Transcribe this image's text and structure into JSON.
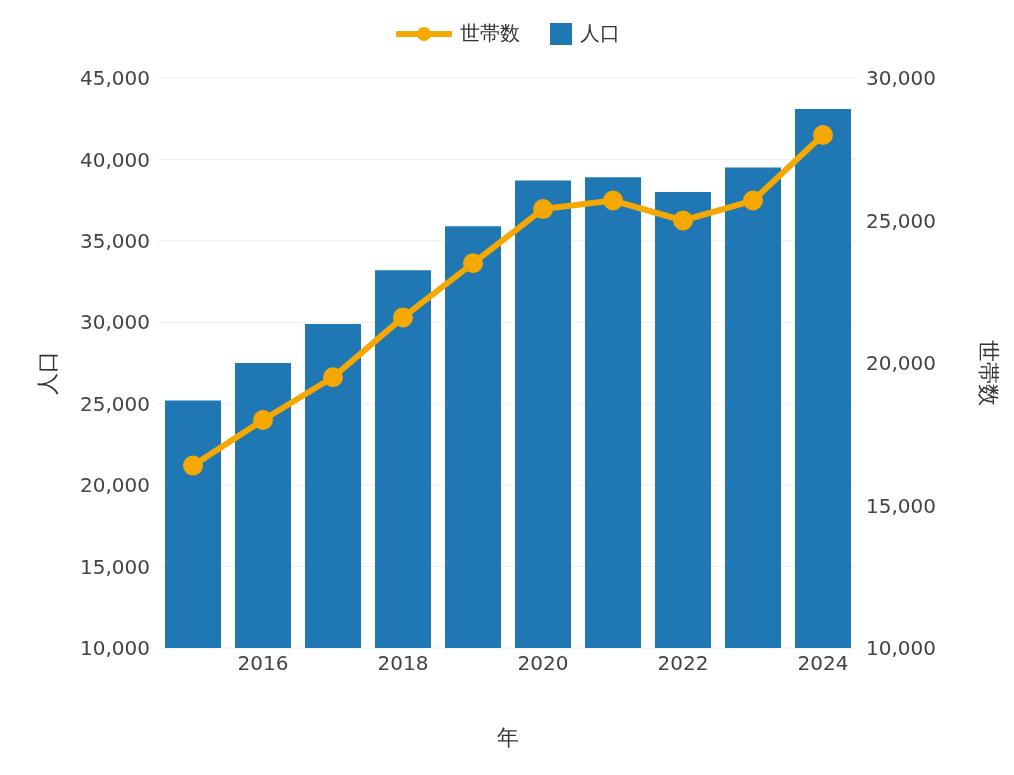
{
  "chart_data": {
    "type": "bar",
    "xlabel": "年",
    "ylabel": "人口",
    "y2label": "世帯数",
    "x": [
      2015,
      2016,
      2017,
      2018,
      2019,
      2020,
      2021,
      2022,
      2023,
      2024
    ],
    "series": [
      {
        "name": "世帯数",
        "type": "line",
        "axis": "y2",
        "color": "#f5a800",
        "values": [
          16400,
          18000,
          19500,
          21600,
          23500,
          25400,
          25700,
          25000,
          25700,
          28000
        ]
      },
      {
        "name": "人口",
        "color": "#1f77b4",
        "values": [
          25200,
          27500,
          29900,
          33200,
          35900,
          38700,
          38900,
          38000,
          39500,
          43100
        ]
      }
    ],
    "xlim": [
      2014.5,
      2024.5
    ],
    "xticks": [
      2016,
      2018,
      2020,
      2022,
      2024
    ],
    "ylim": [
      10000,
      45000
    ],
    "yticks": [
      {
        "value": 10000,
        "label": "10,000"
      },
      {
        "value": 15000,
        "label": "15,000"
      },
      {
        "value": 20000,
        "label": "20,000"
      },
      {
        "value": 25000,
        "label": "25,000"
      },
      {
        "value": 30000,
        "label": "30,000"
      },
      {
        "value": 35000,
        "label": "35,000"
      },
      {
        "value": 40000,
        "label": "40,000"
      },
      {
        "value": 45000,
        "label": "45,000"
      }
    ],
    "y2lim": [
      10000,
      30000
    ],
    "y2ticks": [
      {
        "value": 10000,
        "label": "10,000"
      },
      {
        "value": 15000,
        "label": "15,000"
      },
      {
        "value": 20000,
        "label": "20,000"
      },
      {
        "value": 25000,
        "label": "25,000"
      },
      {
        "value": 30000,
        "label": "30,000"
      }
    ],
    "grid": "y",
    "legend": "top",
    "marker": "circle"
  }
}
